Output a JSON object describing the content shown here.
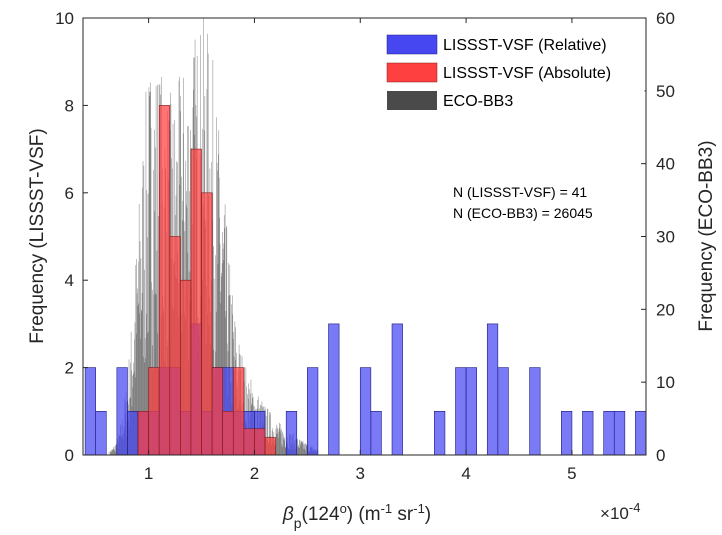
{
  "chart_data": {
    "type": "bar",
    "x_axis": {
      "label_main": "β",
      "label_sub": "p",
      "label_open": "(124",
      "label_deg": "o",
      "label_unit1": ") (m",
      "label_exp1": "-1",
      "label_unit2": " sr",
      "label_exp2": "-1",
      "label_close": ")",
      "range": [
        0.38,
        5.7
      ],
      "ticks": [
        1,
        2,
        3,
        4,
        5
      ],
      "tick_labels": [
        "1",
        "2",
        "3",
        "4",
        "5"
      ],
      "multiplier_times": "×",
      "multiplier_base": "10",
      "multiplier_exp": "-4"
    },
    "y_left": {
      "label": "Frequency (LISSST-VSF)",
      "range": [
        0,
        10
      ],
      "ticks": [
        0,
        2,
        4,
        6,
        8,
        10
      ],
      "tick_labels": [
        "0",
        "2",
        "4",
        "6",
        "8",
        "10"
      ]
    },
    "y_right": {
      "label": "Frequency (ECO-BB3)",
      "range": [
        0,
        60
      ],
      "ticks": [
        0,
        10,
        20,
        30,
        40,
        50,
        60
      ],
      "tick_labels": [
        "0",
        "10",
        "20",
        "30",
        "40",
        "50",
        "60"
      ]
    },
    "legend_position": "top-right",
    "bin_width": 0.1,
    "series": [
      {
        "name": "LISSST-VSF (Relative)",
        "color": "#4747f2",
        "axis": "left",
        "bins": [
          [
            0.45,
            2
          ],
          [
            0.55,
            1
          ],
          [
            0.75,
            2
          ],
          [
            0.85,
            1
          ],
          [
            0.95,
            1
          ],
          [
            1.05,
            1
          ],
          [
            1.15,
            2
          ],
          [
            1.25,
            2
          ],
          [
            1.35,
            1
          ],
          [
            1.45,
            3
          ],
          [
            1.55,
            1
          ],
          [
            1.65,
            2
          ],
          [
            1.75,
            2
          ],
          [
            1.85,
            1
          ],
          [
            1.95,
            1
          ],
          [
            2.05,
            1
          ],
          [
            2.35,
            1
          ],
          [
            2.55,
            2
          ],
          [
            2.75,
            3
          ],
          [
            3.05,
            2
          ],
          [
            3.15,
            1
          ],
          [
            3.35,
            3
          ],
          [
            3.75,
            1
          ],
          [
            3.95,
            2
          ],
          [
            4.05,
            2
          ],
          [
            4.25,
            3
          ],
          [
            4.35,
            2
          ],
          [
            4.65,
            2
          ],
          [
            4.95,
            1
          ],
          [
            5.15,
            1
          ],
          [
            5.35,
            1
          ],
          [
            5.45,
            1
          ],
          [
            5.65,
            1
          ]
        ]
      },
      {
        "name": "LISSST-VSF (Absolute)",
        "color": "#ff4040",
        "axis": "left",
        "bins": [
          [
            0.95,
            1
          ],
          [
            1.05,
            2
          ],
          [
            1.15,
            8
          ],
          [
            1.25,
            5
          ],
          [
            1.35,
            4
          ],
          [
            1.45,
            7
          ],
          [
            1.55,
            6
          ],
          [
            1.65,
            2
          ],
          [
            1.75,
            1
          ],
          [
            1.85,
            2
          ],
          [
            1.95,
            0.6
          ],
          [
            2.05,
            0.6
          ],
          [
            2.15,
            0.4
          ]
        ]
      },
      {
        "name": "ECO-BB3",
        "color": "#404040",
        "axis": "right",
        "n": 26045
      }
    ],
    "annotations": [
      "N (LISSST-VSF) = 41",
      "N (ECO-BB3) = 26045"
    ]
  }
}
